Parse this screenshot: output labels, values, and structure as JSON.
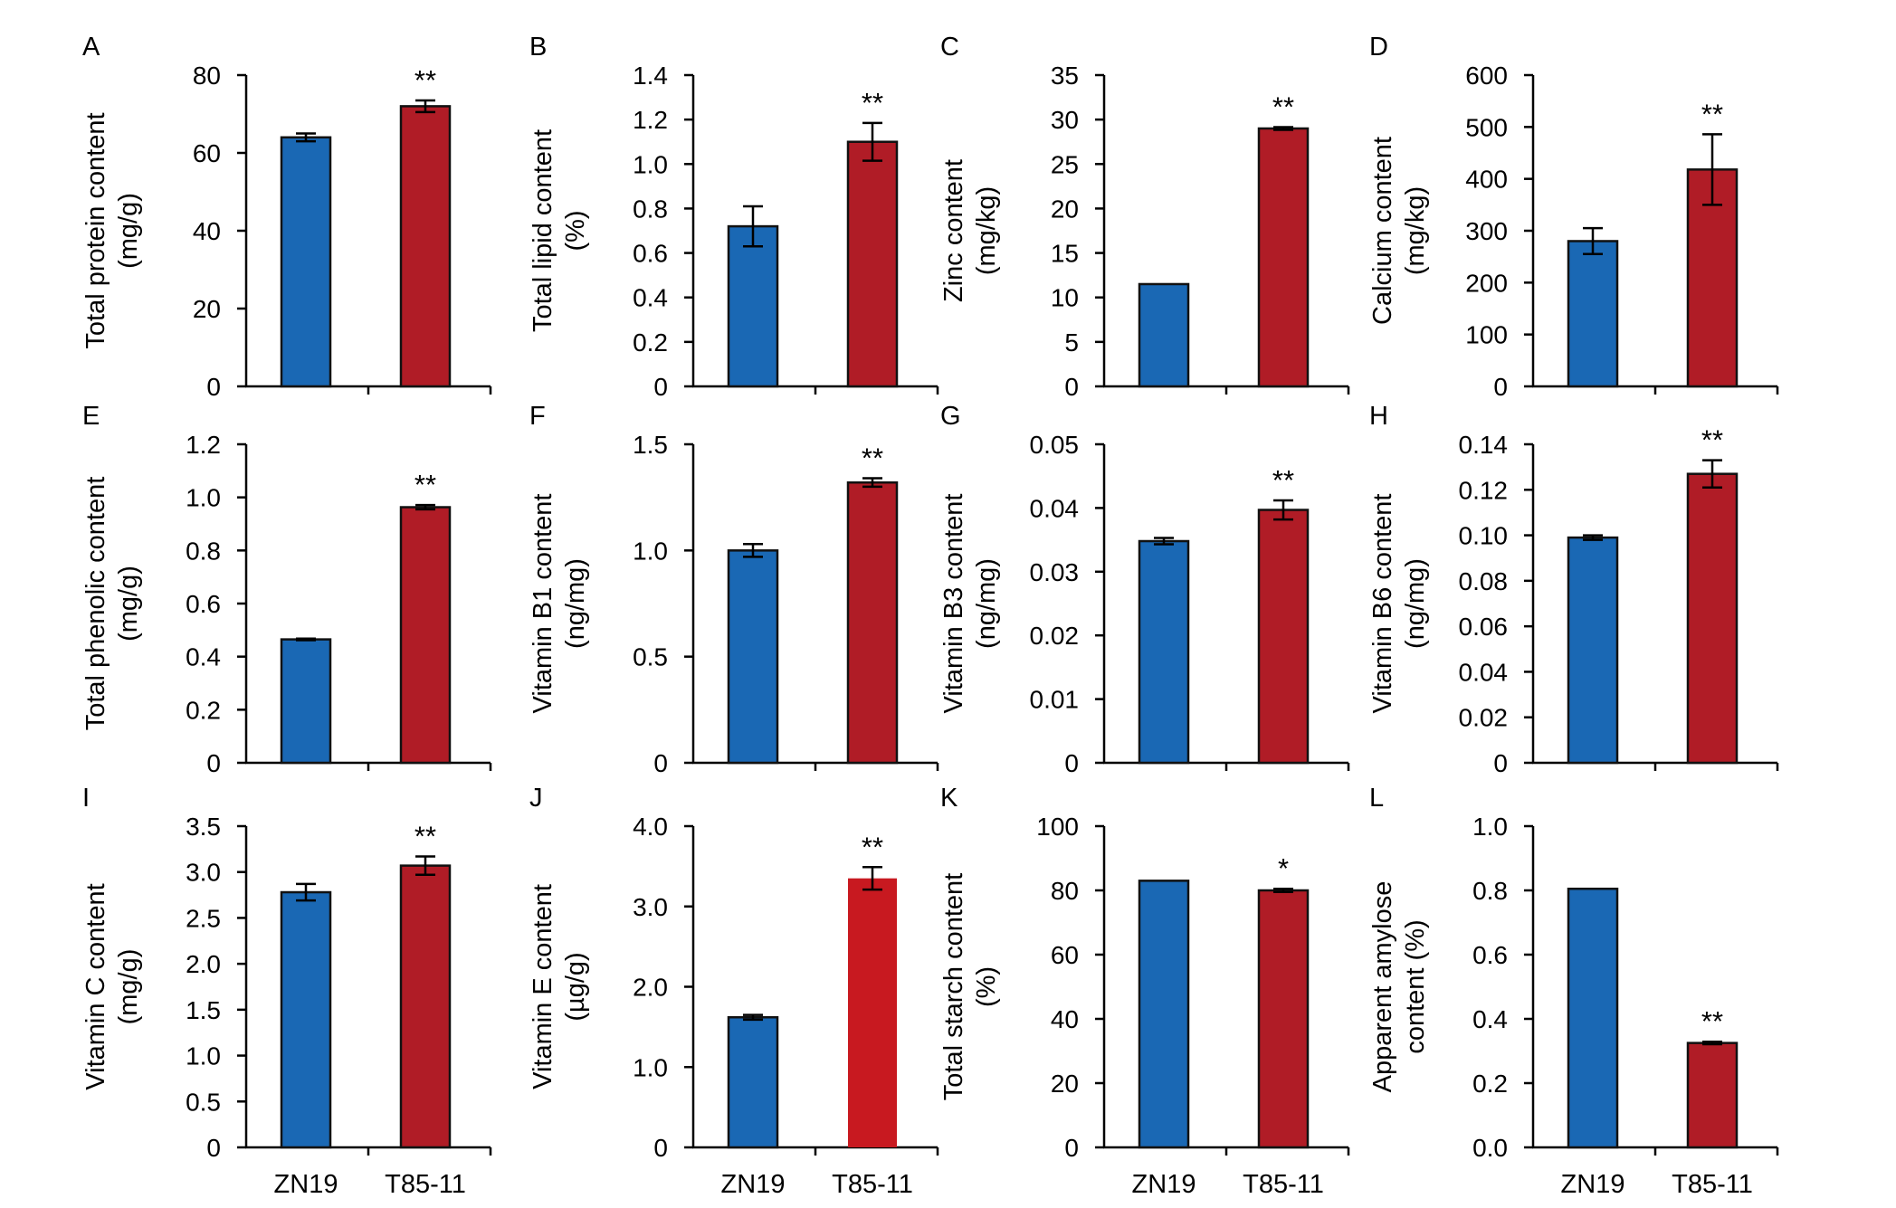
{
  "colors": {
    "control": "#1a68b4",
    "mutant": "#b01c26",
    "mutant_bright": "#c81920",
    "axis": "#000000"
  },
  "chart_data": [
    {
      "panel": "A",
      "type": "bar",
      "categories": [
        "ZN19",
        "T85-11"
      ],
      "values": [
        64,
        72
      ],
      "errors": [
        1,
        1.5
      ],
      "significance": [
        "",
        "**"
      ],
      "ylabel": [
        "Total protein content",
        "(mg/g)"
      ],
      "ylim": [
        0,
        80
      ],
      "ticks": [
        "0",
        "20",
        "40",
        "60",
        "80"
      ],
      "show_x_labels": false
    },
    {
      "panel": "B",
      "type": "bar",
      "categories": [
        "ZN19",
        "T85-11"
      ],
      "values": [
        0.72,
        1.1
      ],
      "errors": [
        0.09,
        0.085
      ],
      "significance": [
        "",
        "**"
      ],
      "ylabel": [
        "Total lipid content",
        "(%)"
      ],
      "ylim": [
        0,
        1.4
      ],
      "ticks": [
        "0",
        "0.2",
        "0.4",
        "0.6",
        "0.8",
        "1.0",
        "1.2",
        "1.4"
      ],
      "show_x_labels": false
    },
    {
      "panel": "C",
      "type": "bar",
      "categories": [
        "ZN19",
        "T85-11"
      ],
      "values": [
        11.5,
        29
      ],
      "errors": [
        0,
        0.15
      ],
      "significance": [
        "",
        "**"
      ],
      "ylabel": [
        "Zinc content",
        "(mg/kg)"
      ],
      "ylim": [
        0,
        35
      ],
      "ticks": [
        "0",
        "5",
        "10",
        "15",
        "20",
        "25",
        "30",
        "35"
      ],
      "show_x_labels": false
    },
    {
      "panel": "D",
      "type": "bar",
      "categories": [
        "ZN19",
        "T85-11"
      ],
      "values": [
        280,
        418
      ],
      "errors": [
        25,
        68
      ],
      "significance": [
        "",
        "**"
      ],
      "ylabel": [
        "Calcium content",
        "(mg/kg)"
      ],
      "ylim": [
        0,
        600
      ],
      "ticks": [
        "0",
        "100",
        "200",
        "300",
        "400",
        "500",
        "600"
      ],
      "show_x_labels": false
    },
    {
      "panel": "E",
      "type": "bar",
      "categories": [
        "ZN19",
        "T85-11"
      ],
      "values": [
        0.465,
        0.963
      ],
      "errors": [
        0.003,
        0.008
      ],
      "significance": [
        "",
        "**"
      ],
      "ylabel": [
        "Total phenolic content",
        "(mg/g)"
      ],
      "ylim": [
        0,
        1.2
      ],
      "ticks": [
        "0",
        "0.2",
        "0.4",
        "0.6",
        "0.8",
        "1.0",
        "1.2"
      ],
      "show_x_labels": false
    },
    {
      "panel": "F",
      "type": "bar",
      "categories": [
        "ZN19",
        "T85-11"
      ],
      "values": [
        1.0,
        1.32
      ],
      "errors": [
        0.03,
        0.02
      ],
      "significance": [
        "",
        "**"
      ],
      "ylabel": [
        "Vitamin B1 content",
        "(ng/mg)"
      ],
      "ylim": [
        0,
        1.5
      ],
      "ticks": [
        "0",
        "0.5",
        "1.0",
        "1.5"
      ],
      "show_x_labels": false
    },
    {
      "panel": "G",
      "type": "bar",
      "categories": [
        "ZN19",
        "T85-11"
      ],
      "values": [
        0.0348,
        0.0397
      ],
      "errors": [
        0.0005,
        0.0015
      ],
      "significance": [
        "",
        "**"
      ],
      "ylabel": [
        "Vitamin B3 content",
        "(ng/mg)"
      ],
      "ylim": [
        0,
        0.05
      ],
      "ticks": [
        "0",
        "0.01",
        "0.02",
        "0.03",
        "0.04",
        "0.05"
      ],
      "show_x_labels": false
    },
    {
      "panel": "H",
      "type": "bar",
      "categories": [
        "ZN19",
        "T85-11"
      ],
      "values": [
        0.099,
        0.127
      ],
      "errors": [
        0.001,
        0.006
      ],
      "significance": [
        "",
        "**"
      ],
      "ylabel": [
        "Vitamin B6 content",
        "(ng/mg)"
      ],
      "ylim": [
        0,
        0.14
      ],
      "ticks": [
        "0",
        "0.02",
        "0.04",
        "0.06",
        "0.08",
        "0.10",
        "0.12",
        "0.14"
      ],
      "show_x_labels": false
    },
    {
      "panel": "I",
      "type": "bar",
      "categories": [
        "ZN19",
        "T85-11"
      ],
      "values": [
        2.78,
        3.07
      ],
      "errors": [
        0.09,
        0.1
      ],
      "significance": [
        "",
        "**"
      ],
      "ylabel": [
        "Vitamin C content",
        "(mg/g)"
      ],
      "ylim": [
        0,
        3.5
      ],
      "ticks": [
        "0",
        "0.5",
        "1.0",
        "1.5",
        "2.0",
        "2.5",
        "3.0",
        "3.5"
      ],
      "show_x_labels": true
    },
    {
      "panel": "J",
      "type": "bar",
      "categories": [
        "ZN19",
        "T85-11"
      ],
      "values": [
        1.62,
        3.35
      ],
      "errors": [
        0.03,
        0.14
      ],
      "significance": [
        "",
        "**"
      ],
      "ylabel": [
        "Vitamin E content",
        "(µg/g)"
      ],
      "ylim": [
        0,
        4.0
      ],
      "ticks": [
        "0",
        "1.0",
        "2.0",
        "3.0",
        "4.0"
      ],
      "show_x_labels": true,
      "mutant_bright": true
    },
    {
      "panel": "K",
      "type": "bar",
      "categories": [
        "ZN19",
        "T85-11"
      ],
      "values": [
        83,
        80
      ],
      "errors": [
        0,
        0.5
      ],
      "significance": [
        "",
        "*"
      ],
      "ylabel": [
        "Total starch content",
        "(%)"
      ],
      "ylim": [
        0,
        100
      ],
      "ticks": [
        "0",
        "20",
        "40",
        "60",
        "80",
        "100"
      ],
      "show_x_labels": true
    },
    {
      "panel": "L",
      "type": "bar",
      "categories": [
        "ZN19",
        "T85-11"
      ],
      "values": [
        0.805,
        0.325
      ],
      "errors": [
        0,
        0.004
      ],
      "significance": [
        "",
        "**"
      ],
      "ylabel": [
        "Apparent amylose",
        "content (%)"
      ],
      "ylim": [
        0,
        1.0
      ],
      "ticks": [
        "0.0",
        "0.2",
        "0.4",
        "0.6",
        "0.8",
        "1.0"
      ],
      "show_x_labels": true
    }
  ]
}
